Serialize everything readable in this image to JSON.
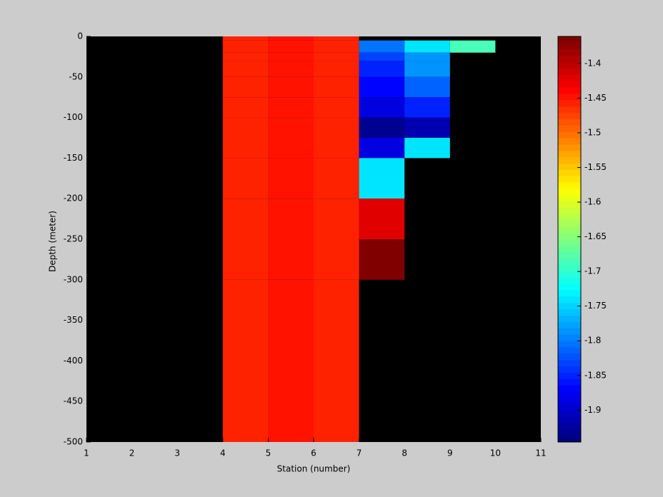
{
  "chart_data": {
    "type": "heatmap",
    "xlabel": "Station (number)",
    "ylabel": "Depth (meter)",
    "x": [
      1,
      2,
      3,
      4,
      5,
      6,
      7,
      8,
      9,
      10,
      11
    ],
    "y": [
      0,
      -5,
      -20,
      -30,
      -50,
      -75,
      -100,
      -125,
      -150,
      -200,
      -250,
      -300,
      -500
    ],
    "z": [
      [
        null,
        null,
        null,
        -1.455,
        -1.445,
        -1.455,
        null,
        null,
        null,
        null
      ],
      [
        null,
        null,
        null,
        -1.455,
        -1.445,
        -1.455,
        -1.8,
        -1.74,
        -1.69,
        null
      ],
      [
        null,
        null,
        null,
        -1.455,
        -1.445,
        -1.455,
        -1.83,
        -1.79,
        null,
        null
      ],
      [
        null,
        null,
        null,
        -1.455,
        -1.445,
        -1.455,
        -1.85,
        -1.79,
        null,
        null
      ],
      [
        null,
        null,
        null,
        -1.455,
        -1.445,
        -1.455,
        -1.87,
        -1.81,
        null,
        null
      ],
      [
        null,
        null,
        null,
        -1.455,
        -1.445,
        -1.455,
        -1.89,
        -1.85,
        null,
        null
      ],
      [
        null,
        null,
        null,
        -1.455,
        -1.445,
        -1.455,
        -1.93,
        -1.91,
        null,
        null
      ],
      [
        null,
        null,
        null,
        -1.455,
        -1.445,
        -1.455,
        -1.89,
        -1.74,
        null,
        null
      ],
      [
        null,
        null,
        null,
        -1.455,
        -1.445,
        -1.455,
        -1.74,
        null,
        null,
        null
      ],
      [
        null,
        null,
        null,
        -1.455,
        -1.445,
        -1.455,
        -1.42,
        null,
        null,
        null
      ],
      [
        null,
        null,
        null,
        -1.455,
        -1.445,
        -1.455,
        -1.37,
        null,
        null,
        null
      ],
      [
        null,
        null,
        null,
        -1.455,
        -1.445,
        -1.455,
        null,
        null,
        null,
        null
      ]
    ],
    "xlim": [
      1,
      11
    ],
    "xticks": [
      1,
      2,
      3,
      4,
      5,
      6,
      7,
      8,
      9,
      10,
      11
    ],
    "ylim": [
      -500,
      0
    ],
    "yticks": [
      0,
      -50,
      -100,
      -150,
      -200,
      -250,
      -300,
      -350,
      -400,
      -450,
      -500
    ],
    "clim": [
      -1.946,
      -1.361
    ],
    "cticks": [
      -1.4,
      -1.45,
      -1.5,
      -1.55,
      -1.6,
      -1.65,
      -1.7,
      -1.75,
      -1.8,
      -1.85,
      -1.9
    ],
    "colormap": "jet",
    "nan_color": "#000000"
  }
}
